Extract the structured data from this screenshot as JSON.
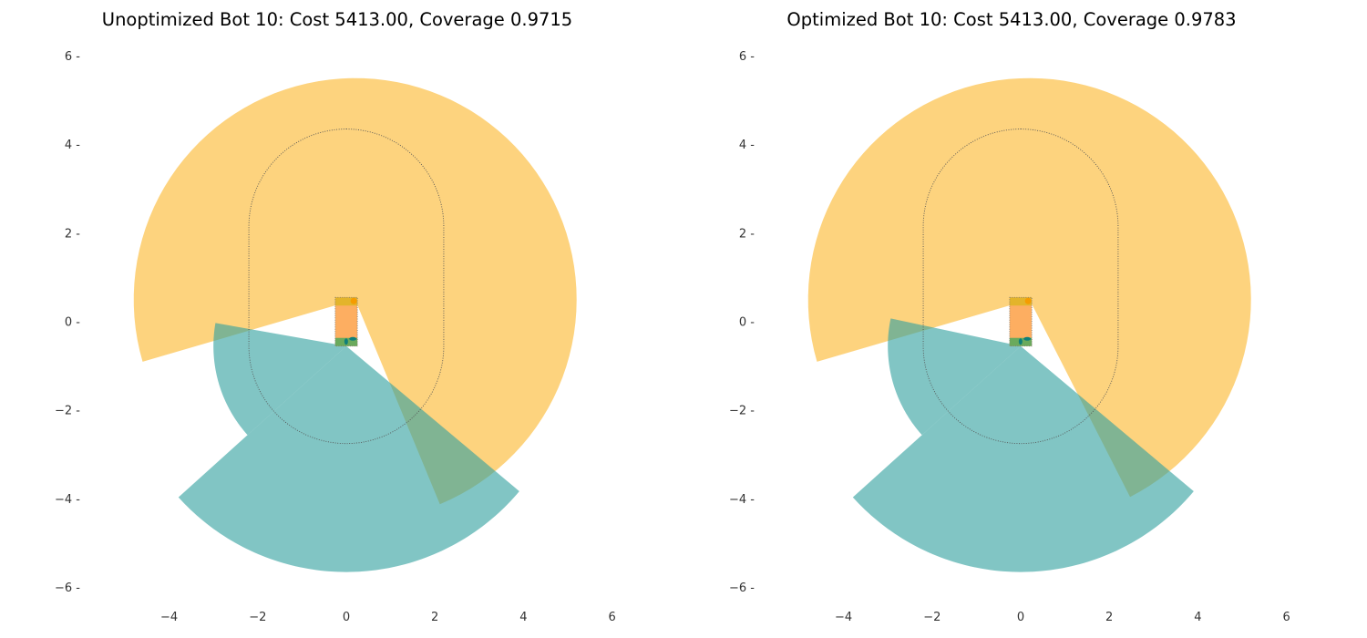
{
  "chart_data": [
    {
      "type": "sector-coverage",
      "title": "Unoptimized Bot 10: Cost 5413.00, Coverage 0.9715",
      "xlim": [
        -6,
        6
      ],
      "ylim": [
        -6,
        6
      ],
      "x_ticks": [
        "−4",
        "−2",
        "0",
        "2",
        "4",
        "6"
      ],
      "y_ticks": [
        "−6",
        "−4",
        "−2",
        "0",
        "2",
        "4",
        "6"
      ],
      "x_tick_values": [
        -4,
        -2,
        0,
        2,
        4,
        6
      ],
      "y_tick_values": [
        -6,
        -4,
        -2,
        0,
        2,
        4,
        6
      ],
      "grid": false,
      "body": {
        "x_min": -0.25,
        "x_max": 0.25,
        "y_min": -0.55,
        "y_max": 0.55
      },
      "coverage_outline": {
        "shape": "stadium",
        "x_min": -2.2,
        "x_max": 2.2,
        "y_min": -2.75,
        "y_max": 4.35,
        "corner_radius": 2.2
      },
      "sensors": [
        {
          "name": "",
          "color": "#fdc962",
          "opacity": 0.82,
          "origin": [
            0.2,
            0.5
          ],
          "radius": 5.0,
          "start_deg": 196.3,
          "end_deg": 292.5,
          "sweep": "clockwise"
        },
        {
          "name": "",
          "color": "#34a29f",
          "opacity": 0.62,
          "origin": [
            0.0,
            -0.55
          ],
          "radius": 3.0,
          "start_deg": 170.0,
          "end_deg": 222.0,
          "sweep": "counterclockwise"
        },
        {
          "name": "",
          "color": "#34a29f",
          "opacity": 0.62,
          "origin": [
            0.0,
            -0.55
          ],
          "radius": 5.1,
          "start_deg": 222.0,
          "end_deg": 320.0,
          "sweep": "counterclockwise"
        }
      ]
    },
    {
      "type": "sector-coverage",
      "title": "Optimized Bot 10: Cost 5413.00, Coverage 0.9783",
      "xlim": [
        -6,
        6
      ],
      "ylim": [
        -6,
        6
      ],
      "x_ticks": [
        "−4",
        "−2",
        "0",
        "2",
        "4",
        "6"
      ],
      "y_ticks": [
        "−6",
        "−4",
        "−2",
        "0",
        "2",
        "4",
        "6"
      ],
      "x_tick_values": [
        -4,
        -2,
        0,
        2,
        4,
        6
      ],
      "y_tick_values": [
        -6,
        -4,
        -2,
        0,
        2,
        4,
        6
      ],
      "grid": false,
      "body": {
        "x_min": -0.25,
        "x_max": 0.25,
        "y_min": -0.55,
        "y_max": 0.55
      },
      "coverage_outline": {
        "shape": "stadium",
        "x_min": -2.2,
        "x_max": 2.2,
        "y_min": -2.75,
        "y_max": 4.35,
        "corner_radius": 2.2
      },
      "sensors": [
        {
          "name": "",
          "color": "#fdc962",
          "opacity": 0.82,
          "origin": [
            0.2,
            0.5
          ],
          "radius": 5.0,
          "start_deg": 196.3,
          "end_deg": 297.0,
          "sweep": "clockwise"
        },
        {
          "name": "",
          "color": "#34a29f",
          "opacity": 0.62,
          "origin": [
            0.0,
            -0.55
          ],
          "radius": 3.0,
          "start_deg": 168.0,
          "end_deg": 222.0,
          "sweep": "counterclockwise"
        },
        {
          "name": "",
          "color": "#34a29f",
          "opacity": 0.62,
          "origin": [
            0.0,
            -0.55
          ],
          "radius": 5.1,
          "start_deg": 222.0,
          "end_deg": 320.0,
          "sweep": "counterclockwise"
        }
      ]
    }
  ]
}
